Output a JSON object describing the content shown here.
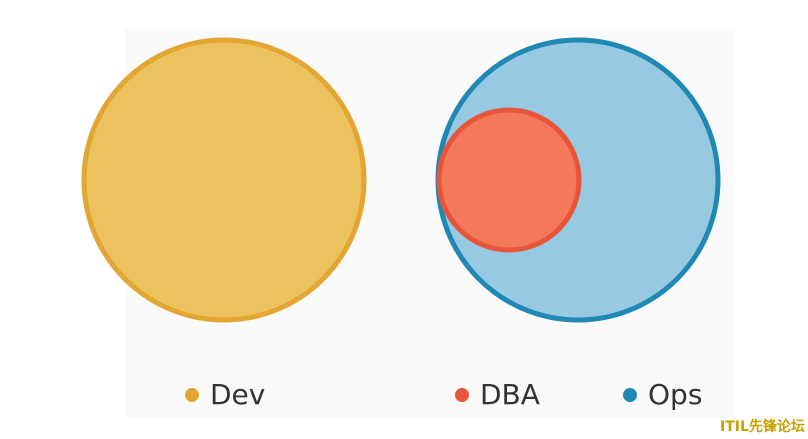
{
  "legend": [
    {
      "label": "Dev",
      "color": "#e3a632"
    },
    {
      "label": "DBA",
      "color": "#e8553a"
    },
    {
      "label": "Ops",
      "color": "#1f88b3"
    }
  ],
  "watermark": "ITIL先锋论坛"
}
